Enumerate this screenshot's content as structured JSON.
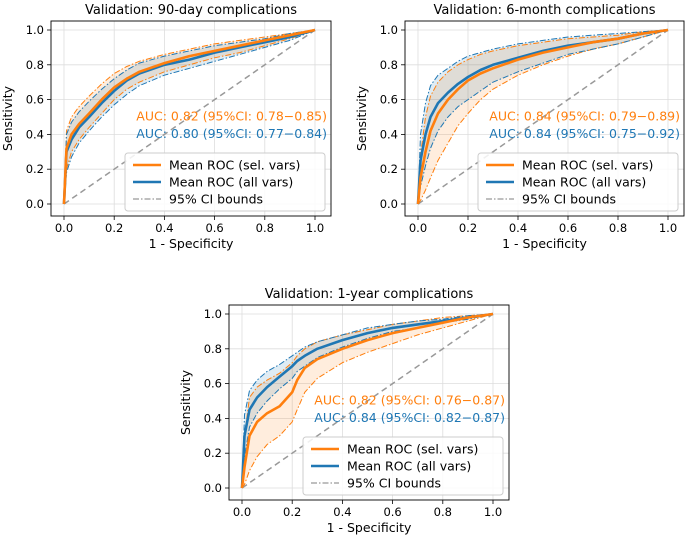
{
  "colors": {
    "sel": "#ff7f0e",
    "all": "#1f77b4",
    "diag": "#999999",
    "grid": "#dddddd",
    "axis": "#000000"
  },
  "chart_data": [
    {
      "type": "line",
      "id": "p1",
      "title": "Validation: 90-day complications",
      "xlabel": "1 - Specificity",
      "ylabel": "Sensitivity",
      "xlim": [
        0,
        1
      ],
      "ylim": [
        0,
        1
      ],
      "ticks": [
        "0.0",
        "0.2",
        "0.4",
        "0.6",
        "0.8",
        "1.0"
      ],
      "grid": true,
      "legend_position": "lower-right",
      "auc_position": "right",
      "auc_sel": "AUC: 0.82 (95%CI: 0.78−0.85)",
      "auc_all": "AUC: 0.80 (95%CI: 0.77−0.84)",
      "legend": {
        "sel": "Mean ROC (sel. vars)",
        "all": "Mean ROC (all vars)",
        "ci": "95% CI bounds"
      },
      "series": [
        {
          "name": "Mean ROC (sel. vars)",
          "color_key": "sel",
          "x": [
            0,
            0.01,
            0.03,
            0.06,
            0.1,
            0.15,
            0.2,
            0.25,
            0.3,
            0.4,
            0.5,
            0.6,
            0.7,
            0.8,
            0.9,
            1.0
          ],
          "y": [
            0,
            0.32,
            0.4,
            0.46,
            0.52,
            0.6,
            0.67,
            0.72,
            0.76,
            0.81,
            0.85,
            0.88,
            0.91,
            0.94,
            0.97,
            1.0
          ],
          "lo": [
            0,
            0.2,
            0.3,
            0.37,
            0.44,
            0.52,
            0.6,
            0.66,
            0.7,
            0.76,
            0.8,
            0.84,
            0.87,
            0.91,
            0.95,
            1.0
          ],
          "hi": [
            0,
            0.42,
            0.5,
            0.56,
            0.62,
            0.69,
            0.75,
            0.79,
            0.82,
            0.86,
            0.89,
            0.92,
            0.94,
            0.96,
            0.98,
            1.0
          ]
        },
        {
          "name": "Mean ROC (all vars)",
          "color_key": "all",
          "x": [
            0,
            0.01,
            0.03,
            0.06,
            0.1,
            0.15,
            0.2,
            0.25,
            0.3,
            0.4,
            0.5,
            0.6,
            0.7,
            0.8,
            0.9,
            1.0
          ],
          "y": [
            0,
            0.3,
            0.37,
            0.44,
            0.5,
            0.58,
            0.65,
            0.71,
            0.75,
            0.8,
            0.83,
            0.87,
            0.9,
            0.93,
            0.96,
            1.0
          ],
          "lo": [
            0,
            0.18,
            0.27,
            0.35,
            0.42,
            0.5,
            0.57,
            0.63,
            0.68,
            0.74,
            0.78,
            0.82,
            0.86,
            0.9,
            0.94,
            1.0
          ],
          "hi": [
            0,
            0.4,
            0.47,
            0.53,
            0.59,
            0.66,
            0.72,
            0.77,
            0.81,
            0.85,
            0.88,
            0.91,
            0.93,
            0.95,
            0.98,
            1.0
          ]
        }
      ]
    },
    {
      "type": "line",
      "id": "p2",
      "title": "Validation: 6-month complications",
      "xlabel": "1 - Specificity",
      "ylabel": "Sensitivity",
      "xlim": [
        0,
        1
      ],
      "ylim": [
        0,
        1
      ],
      "ticks": [
        "0.0",
        "0.2",
        "0.4",
        "0.6",
        "0.8",
        "1.0"
      ],
      "grid": true,
      "legend_position": "lower-right",
      "auc_position": "right",
      "auc_sel": "AUC: 0.84 (95%CI: 0.79−0.89)",
      "auc_all": "AUC: 0.84 (95%CI: 0.75−0.92)",
      "legend": {
        "sel": "Mean ROC (sel. vars)",
        "all": "Mean ROC (all vars)",
        "ci": "95% CI bounds"
      },
      "series": [
        {
          "name": "Mean ROC (sel. vars)",
          "color_key": "sel",
          "x": [
            0,
            0.01,
            0.03,
            0.05,
            0.08,
            0.12,
            0.16,
            0.2,
            0.25,
            0.3,
            0.4,
            0.5,
            0.6,
            0.7,
            0.8,
            0.9,
            1.0
          ],
          "y": [
            0,
            0.15,
            0.3,
            0.42,
            0.52,
            0.6,
            0.66,
            0.71,
            0.75,
            0.78,
            0.83,
            0.87,
            0.9,
            0.93,
            0.95,
            0.98,
            1.0
          ],
          "lo": [
            0,
            0.02,
            0.08,
            0.15,
            0.25,
            0.35,
            0.45,
            0.52,
            0.6,
            0.66,
            0.74,
            0.8,
            0.85,
            0.89,
            0.92,
            0.96,
            1.0
          ],
          "hi": [
            0,
            0.28,
            0.5,
            0.62,
            0.7,
            0.76,
            0.8,
            0.83,
            0.86,
            0.88,
            0.91,
            0.93,
            0.95,
            0.96,
            0.97,
            0.99,
            1.0
          ]
        },
        {
          "name": "Mean ROC (all vars)",
          "color_key": "all",
          "x": [
            0,
            0.01,
            0.03,
            0.05,
            0.08,
            0.12,
            0.16,
            0.2,
            0.25,
            0.3,
            0.4,
            0.5,
            0.6,
            0.7,
            0.8,
            0.9,
            1.0
          ],
          "y": [
            0,
            0.25,
            0.4,
            0.5,
            0.58,
            0.64,
            0.69,
            0.73,
            0.77,
            0.8,
            0.84,
            0.88,
            0.91,
            0.93,
            0.95,
            0.98,
            1.0
          ],
          "lo": [
            0,
            0.1,
            0.22,
            0.32,
            0.42,
            0.5,
            0.56,
            0.6,
            0.65,
            0.7,
            0.76,
            0.81,
            0.86,
            0.89,
            0.92,
            0.96,
            1.0
          ],
          "hi": [
            0,
            0.4,
            0.58,
            0.68,
            0.74,
            0.78,
            0.82,
            0.85,
            0.87,
            0.89,
            0.92,
            0.94,
            0.96,
            0.97,
            0.98,
            0.99,
            1.0
          ]
        }
      ]
    },
    {
      "type": "line",
      "id": "p3",
      "title": "Validation: 1-year complications",
      "xlabel": "1 - Specificity",
      "ylabel": "Sensitivity",
      "xlim": [
        0,
        1
      ],
      "ylim": [
        0,
        1
      ],
      "ticks": [
        "0.0",
        "0.2",
        "0.4",
        "0.6",
        "0.8",
        "1.0"
      ],
      "grid": true,
      "legend_position": "lower-right",
      "auc_position": "right",
      "auc_sel": "AUC: 0.82 (95%CI: 0.76−0.87)",
      "auc_all": "AUC: 0.84 (95%CI: 0.82−0.87)",
      "legend": {
        "sel": "Mean ROC (sel. vars)",
        "all": "Mean ROC (all vars)",
        "ci": "95% CI bounds"
      },
      "series": [
        {
          "name": "Mean ROC (sel. vars)",
          "color_key": "sel",
          "x": [
            0,
            0.01,
            0.03,
            0.06,
            0.1,
            0.15,
            0.2,
            0.22,
            0.25,
            0.3,
            0.4,
            0.5,
            0.6,
            0.7,
            0.8,
            0.9,
            1.0
          ],
          "y": [
            0,
            0.12,
            0.3,
            0.38,
            0.43,
            0.47,
            0.55,
            0.62,
            0.69,
            0.74,
            0.8,
            0.85,
            0.89,
            0.92,
            0.95,
            0.98,
            1.0
          ],
          "lo": [
            0,
            0.02,
            0.1,
            0.18,
            0.25,
            0.3,
            0.38,
            0.45,
            0.55,
            0.63,
            0.72,
            0.78,
            0.83,
            0.88,
            0.92,
            0.96,
            1.0
          ],
          "hi": [
            0,
            0.3,
            0.52,
            0.58,
            0.62,
            0.66,
            0.72,
            0.76,
            0.8,
            0.84,
            0.88,
            0.91,
            0.94,
            0.96,
            0.98,
            0.99,
            1.0
          ]
        },
        {
          "name": "Mean ROC (all vars)",
          "color_key": "all",
          "x": [
            0,
            0.01,
            0.03,
            0.06,
            0.1,
            0.15,
            0.2,
            0.22,
            0.25,
            0.3,
            0.4,
            0.5,
            0.6,
            0.7,
            0.8,
            0.9,
            1.0
          ],
          "y": [
            0,
            0.3,
            0.45,
            0.52,
            0.58,
            0.64,
            0.7,
            0.73,
            0.76,
            0.8,
            0.85,
            0.89,
            0.92,
            0.94,
            0.96,
            0.98,
            1.0
          ],
          "lo": [
            0,
            0.18,
            0.35,
            0.43,
            0.5,
            0.57,
            0.63,
            0.67,
            0.7,
            0.75,
            0.81,
            0.86,
            0.9,
            0.92,
            0.95,
            0.97,
            1.0
          ],
          "hi": [
            0,
            0.42,
            0.56,
            0.62,
            0.67,
            0.71,
            0.76,
            0.78,
            0.81,
            0.84,
            0.88,
            0.92,
            0.94,
            0.96,
            0.97,
            0.99,
            1.0
          ]
        }
      ]
    }
  ]
}
